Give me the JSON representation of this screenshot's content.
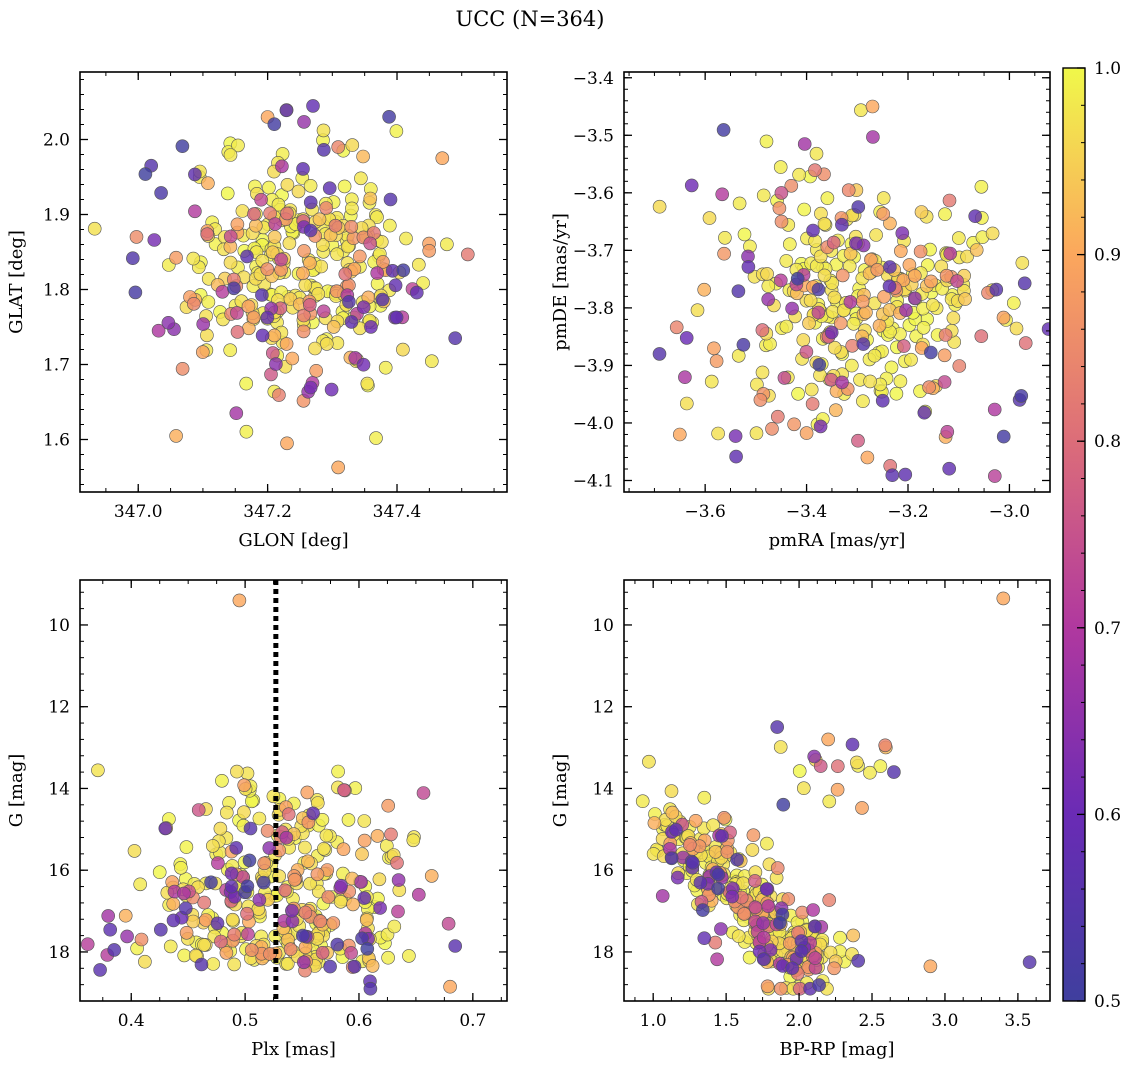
{
  "figure": {
    "title": "UCC (N=364)"
  },
  "colorbar": {
    "min": 0.5,
    "max": 1.0,
    "ticks": [
      "0.5",
      "0.6",
      "0.7",
      "0.8",
      "0.9",
      "1.0"
    ],
    "colormap": "plasma"
  },
  "chart_data": [
    {
      "type": "scatter",
      "id": "glon_glat",
      "xlabel": "GLON [deg]",
      "ylabel": "GLAT [deg]",
      "xlim": [
        346.91,
        347.57
      ],
      "ylim": [
        1.53,
        2.09
      ],
      "y_inverted": false,
      "xticks": [
        347.0,
        347.2,
        347.4
      ],
      "xtick_labels": [
        "347.0",
        "347.2",
        "347.4"
      ],
      "yticks": [
        1.6,
        1.7,
        1.8,
        1.9,
        2.0
      ],
      "ytick_labels": [
        "1.6",
        "1.7",
        "1.8",
        "1.9",
        "2.0"
      ],
      "center": [
        347.24,
        1.83
      ],
      "spread": [
        0.085,
        0.07
      ],
      "points_note": "364 members colored by membership probability (0.5-1.0); members concentrated near center",
      "outliers": [
        [
          347.2,
          2.03
        ],
        [
          347.02,
          1.965
        ],
        [
          347.47,
          1.975
        ],
        [
          347.49,
          1.735
        ],
        [
          347.23,
          1.595
        ],
        [
          347.39,
          1.92
        ]
      ]
    },
    {
      "type": "scatter",
      "id": "pm",
      "xlabel": "pmRA [mas/yr]",
      "ylabel": "pmDE [mas/yr]",
      "xlim": [
        -3.76,
        -2.92
      ],
      "ylim": [
        -4.12,
        -3.39
      ],
      "y_inverted": false,
      "xticks": [
        -3.6,
        -3.4,
        -3.2,
        -3.0
      ],
      "xtick_labels": [
        "−3.6",
        "−3.4",
        "−3.2",
        "−3.0"
      ],
      "yticks": [
        -4.1,
        -4.0,
        -3.9,
        -3.8,
        -3.7,
        -3.6,
        -3.5,
        -3.4
      ],
      "ytick_labels": [
        "−4.1",
        "−4.0",
        "−3.9",
        "−3.8",
        "−3.7",
        "−3.6",
        "−3.5",
        "−3.4"
      ],
      "center": [
        -3.3,
        -3.79
      ],
      "spread": [
        0.13,
        0.11
      ],
      "outliers": [
        [
          -3.27,
          -3.45
        ],
        [
          -3.69,
          -3.88
        ],
        [
          -3.65,
          -4.02
        ],
        [
          -2.98,
          -3.96
        ],
        [
          -3.28,
          -4.06
        ]
      ]
    },
    {
      "type": "scatter",
      "id": "plx_g",
      "xlabel": "Plx [mas]",
      "ylabel": "G [mag]",
      "xlim": [
        0.355,
        0.73
      ],
      "ylim": [
        19.2,
        8.9
      ],
      "y_inverted": true,
      "xticks": [
        0.4,
        0.5,
        0.6,
        0.7
      ],
      "xtick_labels": [
        "0.4",
        "0.5",
        "0.6",
        "0.7"
      ],
      "yticks": [
        10,
        12,
        14,
        16,
        18
      ],
      "ytick_labels": [
        "10",
        "12",
        "14",
        "16",
        "18"
      ],
      "reference_line": {
        "x": 0.527,
        "style": "dotted"
      },
      "center": [
        0.53,
        16.3
      ],
      "spread": [
        0.055,
        1.5
      ],
      "outliers": [
        [
          0.495,
          9.4
        ],
        [
          0.61,
          18.9
        ],
        [
          0.68,
          18.85
        ],
        [
          0.385,
          17.95
        ]
      ]
    },
    {
      "type": "scatter",
      "id": "cmd",
      "xlabel": "BP-RP [mag]",
      "ylabel": "G [mag]",
      "xlim": [
        0.8,
        3.72
      ],
      "ylim": [
        19.2,
        8.9
      ],
      "y_inverted": true,
      "xticks": [
        1.0,
        1.5,
        2.0,
        2.5,
        3.0,
        3.5
      ],
      "xtick_labels": [
        "1.0",
        "1.5",
        "2.0",
        "2.5",
        "3.0",
        "3.5"
      ],
      "yticks": [
        10,
        12,
        14,
        16,
        18
      ],
      "ytick_labels": [
        "10",
        "12",
        "14",
        "16",
        "18"
      ],
      "sequence_note": "main sequence from (0.95, 14.1) down to (2.1, 18.5)",
      "outliers": [
        [
          3.4,
          9.35
        ],
        [
          3.58,
          18.25
        ],
        [
          2.9,
          18.35
        ],
        [
          2.65,
          13.6
        ],
        [
          2.2,
          12.8
        ],
        [
          1.85,
          12.5
        ]
      ]
    }
  ]
}
